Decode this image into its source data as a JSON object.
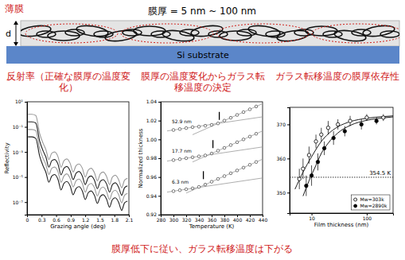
{
  "header": {
    "label": "薄膜",
    "title": "膜厚 = 5 nm ~ 100 nm"
  },
  "diagram": {
    "thickness_label": "d",
    "substrate": "Si substrate"
  },
  "chart_data": [
    {
      "type": "line",
      "title": "反射率（正確な膜厚の温度変化）",
      "x_label": "Grazing angle (deg)",
      "y_label": "Reflectivity",
      "log": "y",
      "x": [
        0.02,
        0.1,
        0.18,
        0.26,
        0.33,
        0.39,
        0.45,
        0.51,
        0.57,
        0.64,
        0.7,
        0.76,
        0.82,
        0.89,
        0.95,
        1.01,
        1.07,
        1.14,
        1.2,
        1.26,
        1.32,
        1.39,
        1.45,
        1.51,
        1.57,
        1.64,
        1.7,
        1.76,
        1.82,
        1.89,
        1.95,
        2.01,
        2.07
      ],
      "xlim": [
        0,
        2.1
      ],
      "xticks": [
        0,
        0.3,
        0.6,
        0.9,
        1.2,
        1.5,
        1.8,
        2.1
      ],
      "ylim": [
        1e-08,
        10
      ],
      "yticks": [
        {
          "value": 10,
          "label": "10¹"
        },
        {
          "value": 0.1,
          "label": "10⁻¹"
        },
        {
          "value": 0.001,
          "label": "10⁻³"
        },
        {
          "value": 1e-05,
          "label": "10⁻⁵"
        },
        {
          "value": 1e-07,
          "label": "10⁻⁷"
        }
      ],
      "series": [
        {
          "color": "#9a9a9a",
          "values": [
            1,
            1,
            0.8,
            0.03,
            0.005,
            0.0015,
            0.00025,
            0.0008,
            0.001,
            0.0004,
            6e-05,
            0.0002,
            0.00028,
            0.00012,
            2.5e-05,
            8e-05,
            0.00011,
            5e-05,
            1e-05,
            3.5e-05,
            5e-05,
            2.2e-05,
            5e-06,
            1.8e-05,
            2.5e-05,
            1.1e-05,
            2.5e-06,
            1e-05,
            1.4e-05,
            6e-06,
            1.4e-06,
            5.6e-06,
            8e-06
          ]
        },
        {
          "color": "#222222",
          "values": [
            0.25,
            0.25,
            0.2,
            0.0075,
            0.00125,
            0.00038,
            6.2e-05,
            0.0002,
            0.00025,
            0.0001,
            1.5e-05,
            5e-05,
            7e-05,
            3e-05,
            6.2e-06,
            2e-05,
            2.8e-05,
            1.2e-05,
            2.5e-06,
            8.8e-06,
            1.2e-05,
            5.5e-06,
            1.2e-06,
            4.5e-06,
            6.2e-06,
            2.8e-06,
            6.2e-07,
            2.5e-06,
            3.5e-06,
            1.5e-06,
            3.5e-07,
            1.4e-06,
            2e-06
          ]
        },
        {
          "color": "#9a9a9a",
          "values": [
            0.062,
            0.062,
            0.05,
            0.0019,
            0.00031,
            9.4e-05,
            1.6e-05,
            5e-05,
            6.2e-05,
            2.5e-05,
            3.8e-06,
            1.2e-05,
            1.8e-05,
            7.5e-06,
            1.6e-06,
            5e-06,
            6.9e-06,
            3.1e-06,
            6.2e-07,
            2.2e-06,
            3.1e-06,
            1.4e-06,
            3.1e-07,
            1.1e-06,
            1.6e-06,
            6.9e-07,
            1.6e-07,
            6.2e-07,
            8.8e-07,
            3.8e-07,
            8.8e-08,
            3.5e-07,
            5e-07
          ]
        },
        {
          "color": "#222222",
          "values": [
            0.016,
            0.016,
            0.012,
            0.00047,
            7.8e-05,
            2.3e-05,
            3.9e-06,
            1.2e-05,
            1.6e-05,
            6.2e-06,
            9.4e-07,
            3.1e-06,
            4.4e-06,
            1.9e-06,
            3.9e-07,
            1.2e-06,
            1.7e-06,
            7.8e-07,
            1.6e-07,
            5.5e-07,
            7.8e-07,
            3.4e-07,
            7.8e-08,
            2.8e-07,
            3.9e-07,
            1.7e-07,
            3.9e-08,
            1.6e-07,
            2.2e-07,
            9.4e-08,
            2.2e-08,
            8.8e-08,
            1.2e-07
          ]
        }
      ]
    },
    {
      "type": "scatter",
      "title": "膜厚の温度変化からガラス転移温度の決定",
      "x_label": "Temperature (K)",
      "y_label": "Normalized thickness",
      "x": [
        300,
        310,
        320,
        330,
        340,
        350,
        360,
        370,
        380,
        390,
        400,
        410,
        420,
        430
      ],
      "xlim": [
        280,
        440
      ],
      "xticks": [
        280,
        300,
        320,
        340,
        360,
        380,
        400,
        420,
        440
      ],
      "ylim": [
        0.92,
        1.04
      ],
      "yticks": [
        0.92,
        0.94,
        0.96,
        0.98,
        {
          "value": 1,
          "label": "1.00"
        },
        1.02,
        1.04
      ],
      "series": [
        {
          "name": "52.9 nm",
          "color": "#444444",
          "marker": "open-circle",
          "values": [
            1.01,
            1.011,
            1.012,
            1.013,
            1.0135,
            1.0145,
            1.0155,
            1.017,
            1.02,
            1.023,
            1.026,
            1.029,
            1.032,
            1.035
          ]
        },
        {
          "name": "17.7 nm",
          "color": "#444444",
          "marker": "open-circle",
          "values": [
            0.978,
            0.979,
            0.98,
            0.981,
            0.982,
            0.983,
            0.985,
            0.988,
            0.991,
            0.994,
            0.997,
            1.0,
            1.003,
            1.006
          ]
        },
        {
          "name": "6.3 nm",
          "color": "#444444",
          "marker": "open-circle",
          "values": [
            0.945,
            0.946,
            0.947,
            0.948,
            0.9495,
            0.952,
            0.955,
            0.958,
            0.961,
            0.964,
            0.967,
            0.97,
            0.973,
            0.976
          ]
        }
      ],
      "fit_lines": [
        {
          "color": "#999999",
          "x": [
            290,
            440
          ],
          "values": [
            1.009,
            1.024
          ]
        },
        {
          "color": "#999999",
          "x": [
            330,
            440
          ],
          "values": [
            1.005,
            1.038
          ]
        },
        {
          "color": "#999999",
          "x": [
            290,
            440
          ],
          "values": [
            0.977,
            0.992
          ]
        },
        {
          "color": "#999999",
          "x": [
            330,
            440
          ],
          "values": [
            0.976,
            1.009
          ]
        },
        {
          "color": "#999999",
          "x": [
            290,
            440
          ],
          "values": [
            0.944,
            0.959
          ]
        },
        {
          "color": "#999999",
          "x": [
            320,
            440
          ],
          "values": [
            0.943,
            0.979
          ]
        }
      ],
      "tg_marks": {
        "x": [
          372,
          362,
          347
        ],
        "y": [
          1.025,
          0.995,
          0.962
        ]
      }
    },
    {
      "type": "scatter",
      "title": "ガラス転移温度の膜厚依存性",
      "x_label": "Film thickness (nm)",
      "log": "x",
      "xlim": [
        4,
        300
      ],
      "xticks": [
        10,
        100
      ],
      "ylim": [
        344,
        375
      ],
      "yticks": [
        350,
        360,
        370
      ],
      "legend": "lower right",
      "series": [
        {
          "name": "Mw=303k",
          "color": "#000000",
          "marker": "open-circle",
          "x": [
            6,
            7,
            9,
            12,
            15,
            20,
            30,
            50,
            100,
            200
          ],
          "values": [
            354,
            357,
            361,
            365,
            367,
            369,
            370,
            371,
            372,
            372
          ],
          "errors": [
            3,
            3,
            2.5,
            2,
            2,
            2,
            1.5,
            1.5,
            1,
            1
          ]
        },
        {
          "name": "Mw=2890k",
          "color": "#000000",
          "marker": "filled-circle",
          "x": [
            8,
            10,
            13,
            17,
            25,
            40,
            80,
            150
          ],
          "values": [
            352,
            355,
            359,
            363,
            366,
            368,
            370,
            371
          ],
          "errors": [
            3,
            3,
            2.5,
            2,
            2,
            1.5,
            1.5,
            1
          ]
        }
      ],
      "fit_lines": [
        {
          "color": "#000000",
          "x": [
            5,
            7,
            10,
            15,
            20,
            30,
            50,
            100,
            200,
            300
          ],
          "values": [
            351,
            356,
            360.5,
            365,
            367.2,
            369.3,
            370.8,
            371.8,
            372.3,
            372.5
          ]
        },
        {
          "color": "#000000",
          "x": [
            7,
            9,
            12,
            15,
            20,
            30,
            50,
            100,
            200,
            300
          ],
          "values": [
            349,
            353.5,
            358,
            361.5,
            364.5,
            367.5,
            369.7,
            371.2,
            371.9,
            372.2
          ]
        }
      ],
      "reference": {
        "value": 354.5,
        "label": "354.5 K"
      }
    }
  ],
  "caption": "膜厚低下に従い、ガラス転移温度は下がる"
}
